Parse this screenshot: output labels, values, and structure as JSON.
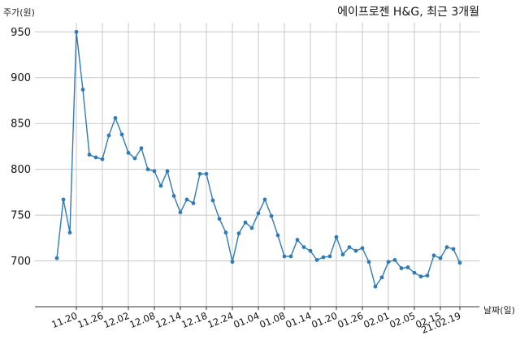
{
  "chart_data": {
    "type": "line",
    "title": "에이프로젠 H&G, 최근 3개월",
    "ylabel": "주가(원)",
    "xlabel": "날짜(일)",
    "ylim": [
      650,
      960
    ],
    "yticks": [
      700,
      750,
      800,
      850,
      900,
      950
    ],
    "grid": true,
    "line_color": "#2f7bb3",
    "xtick_labels": [
      "11.20",
      "11.26",
      "12.02",
      "12.08",
      "12.14",
      "12.18",
      "12.24",
      "01.04",
      "01.08",
      "01.14",
      "01.20",
      "01.26",
      "02.01",
      "02.05",
      "02.15",
      "21.02.19"
    ],
    "xtick_index": [
      3,
      7,
      11,
      15,
      19,
      23,
      27,
      31,
      35,
      39,
      43,
      47,
      51,
      55,
      59,
      62
    ],
    "series": [
      {
        "values": [
          703,
          767,
          731,
          950,
          887,
          816,
          813,
          811,
          837,
          856,
          838,
          818,
          812,
          823,
          800,
          798,
          782,
          798,
          771,
          753,
          767,
          763,
          795,
          795,
          766,
          746,
          731,
          699,
          730,
          742,
          736,
          752,
          767,
          749,
          728,
          705,
          705,
          723,
          715,
          711,
          701,
          704,
          705,
          726,
          707,
          715,
          711,
          714,
          699,
          672,
          682,
          699,
          701,
          692,
          693,
          687,
          683,
          684,
          706,
          703,
          715,
          713,
          698
        ]
      }
    ]
  }
}
